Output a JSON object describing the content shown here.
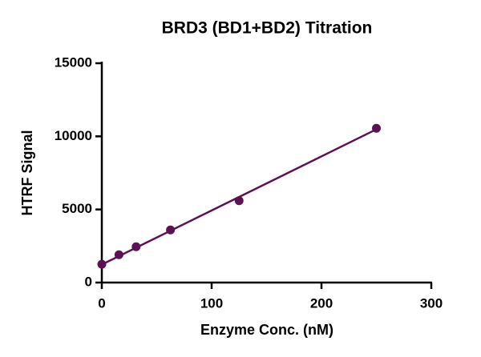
{
  "chart_data": {
    "type": "scatter",
    "title": "BRD3 (BD1+BD2) Titration",
    "x_label": "Enzyme Conc. (nM)",
    "y_label": "HTRF Signal",
    "x": [
      0,
      15.6,
      31.25,
      62.5,
      125,
      250
    ],
    "values": [
      1250,
      1900,
      2450,
      3600,
      5600,
      10550
    ],
    "color": "#5e1152",
    "fit_line": {
      "x": [
        0,
        250
      ],
      "values": [
        1230,
        10480
      ]
    },
    "xlim": [
      0,
      300
    ],
    "xticks": [
      0,
      100,
      200,
      300
    ],
    "ylim": [
      0,
      15000
    ],
    "yticks": [
      0,
      5000,
      10000,
      15000
    ],
    "grid": false
  }
}
